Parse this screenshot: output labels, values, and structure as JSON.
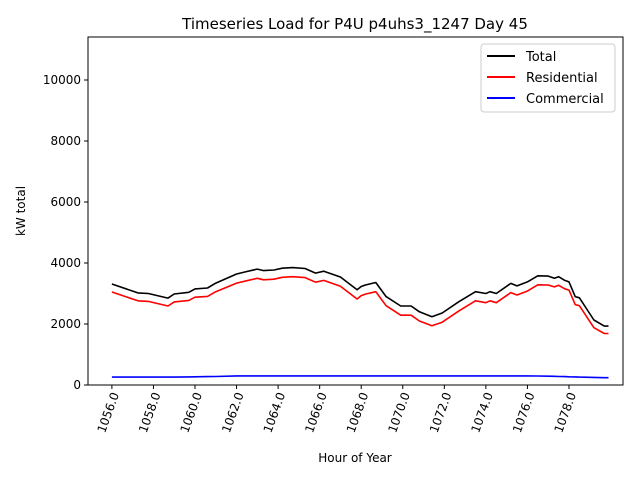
{
  "chart_data": {
    "type": "line",
    "title": "Timeseries Load for P4U p4uhs3_1247  Day 45",
    "xlabel": "Hour of Year",
    "ylabel": "kW total",
    "xlim": [
      1054.85,
      1080.6
    ],
    "ylim": [
      0,
      11410
    ],
    "xticks": [
      1056,
      1058,
      1060,
      1062,
      1064,
      1066,
      1068,
      1070,
      1072,
      1074,
      1076,
      1078
    ],
    "xtick_labels": [
      "1056.0",
      "1058.0",
      "1060.0",
      "1062.0",
      "1064.0",
      "1066.0",
      "1068.0",
      "1070.0",
      "1072.0",
      "1074.0",
      "1076.0",
      "1078.0"
    ],
    "yticks": [
      0,
      2000,
      4000,
      6000,
      8000,
      10000
    ],
    "ytick_labels": [
      "0",
      "2000",
      "4000",
      "6000",
      "8000",
      "10000"
    ],
    "grid": false,
    "legend_position": "top-right",
    "x": [
      1056,
      1057.25,
      1057.75,
      1058.7,
      1059,
      1059.7,
      1060,
      1060.6,
      1061,
      1062,
      1062.5,
      1063,
      1063.3,
      1063.8,
      1064.2,
      1064.7,
      1065.3,
      1065.8,
      1066.2,
      1067,
      1067.8,
      1068,
      1068.2,
      1068.7,
      1069.2,
      1069.9,
      1070.4,
      1070.8,
      1071.4,
      1071.9,
      1072.7,
      1073.5,
      1074,
      1074.2,
      1074.5,
      1075.2,
      1075.5,
      1076,
      1076.5,
      1077,
      1077.3,
      1077.5,
      1077.8,
      1078,
      1078.3,
      1078.5,
      1079.2,
      1079.7,
      1079.9
    ],
    "series": [
      {
        "name": "Total",
        "color": "#000000",
        "values": [
          3310,
          3020,
          3000,
          2850,
          2985,
          3040,
          3150,
          3180,
          3340,
          3640,
          3720,
          3800,
          3750,
          3770,
          3830,
          3850,
          3820,
          3670,
          3730,
          3540,
          3120,
          3230,
          3280,
          3360,
          2900,
          2590,
          2590,
          2400,
          2240,
          2360,
          2730,
          3060,
          3000,
          3060,
          3000,
          3330,
          3250,
          3380,
          3580,
          3570,
          3500,
          3550,
          3430,
          3380,
          2900,
          2860,
          2130,
          1930,
          1930
        ]
      },
      {
        "name": "Residential",
        "color": "#ff0000",
        "values": [
          3050,
          2760,
          2740,
          2590,
          2725,
          2775,
          2880,
          2905,
          3060,
          3340,
          3420,
          3500,
          3450,
          3470,
          3530,
          3550,
          3520,
          3370,
          3430,
          3240,
          2820,
          2930,
          2980,
          3060,
          2600,
          2290,
          2290,
          2100,
          1940,
          2060,
          2430,
          2760,
          2700,
          2760,
          2700,
          3030,
          2950,
          3080,
          3285,
          3280,
          3215,
          3270,
          3155,
          3110,
          2635,
          2600,
          1880,
          1690,
          1690
        ]
      },
      {
        "name": "Commercial",
        "color": "#0000ff",
        "values": [
          260,
          260,
          260,
          260,
          260,
          265,
          270,
          275,
          280,
          300,
          300,
          300,
          300,
          300,
          300,
          300,
          300,
          300,
          300,
          300,
          300,
          300,
          300,
          300,
          300,
          300,
          300,
          300,
          300,
          300,
          300,
          300,
          300,
          300,
          300,
          300,
          300,
          300,
          295,
          290,
          285,
          280,
          275,
          270,
          265,
          260,
          250,
          240,
          240
        ]
      }
    ]
  }
}
